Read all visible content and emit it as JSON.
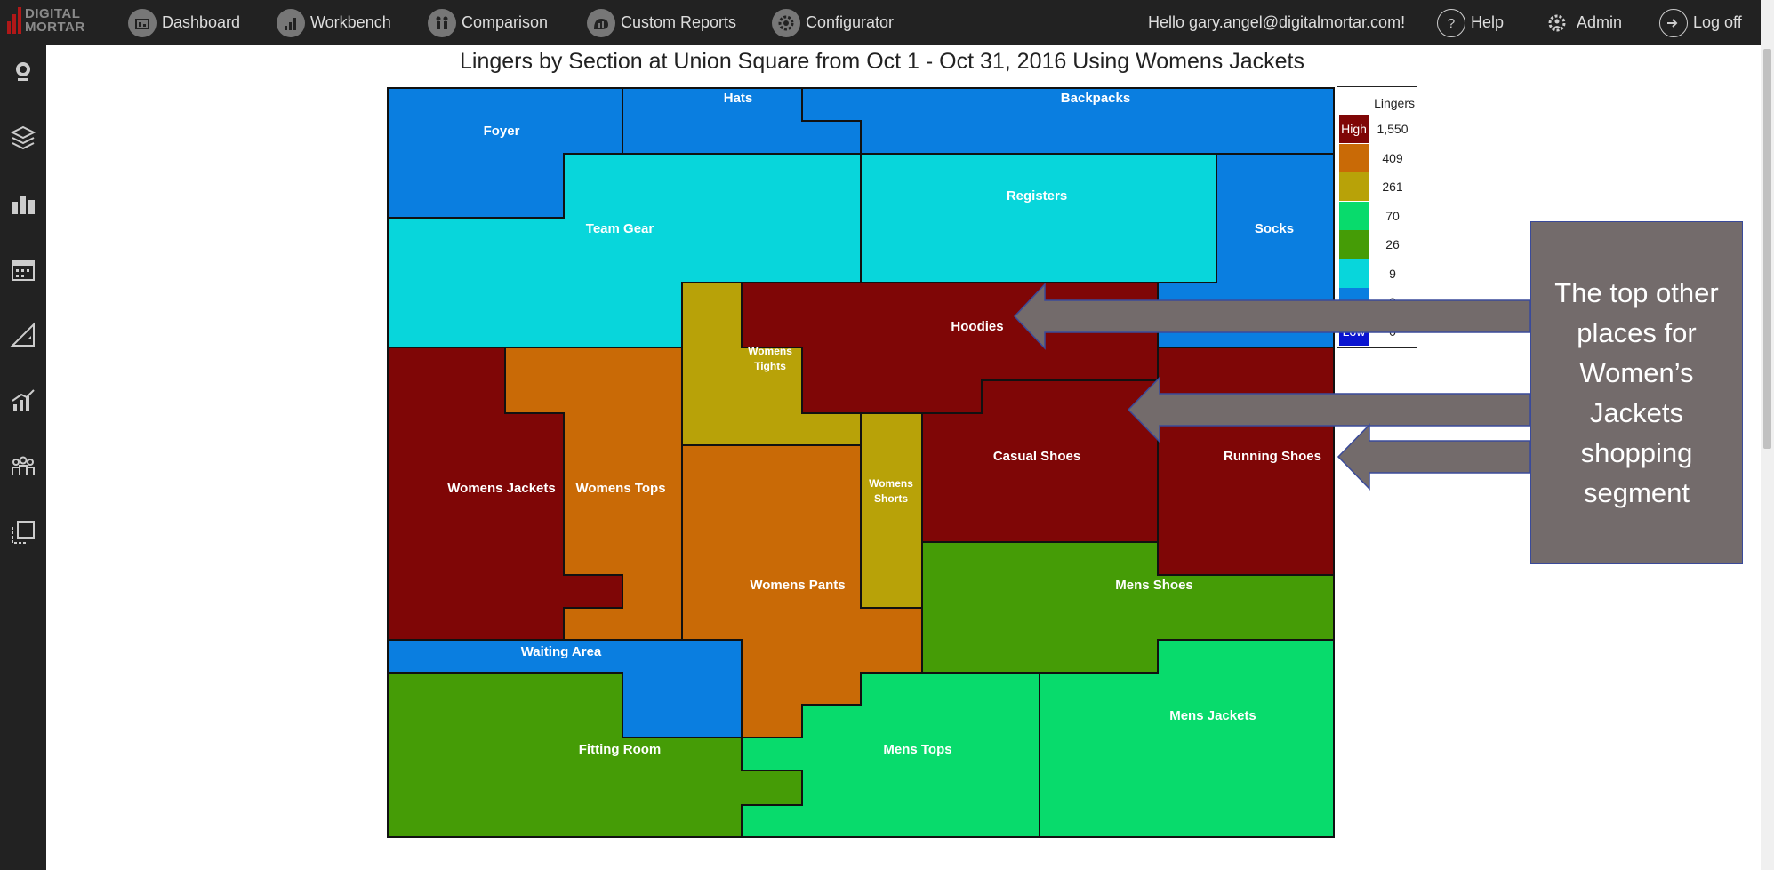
{
  "app": {
    "logo_line1": "DIGITAL",
    "logo_line2": "MORTAR",
    "greeting": "Hello gary.angel@digitalmortar.com!"
  },
  "nav": {
    "dashboard": "Dashboard",
    "workbench": "Workbench",
    "comparison": "Comparison",
    "custom_reports": "Custom Reports",
    "configurator": "Configurator",
    "help": "Help",
    "admin": "Admin",
    "logoff": "Log off"
  },
  "sidebar_icons": [
    "camera-icon",
    "layers-icon",
    "buildings-icon",
    "calendar-icon",
    "triangle-ruler-icon",
    "growth-chart-icon",
    "people-icon",
    "selection-icon"
  ],
  "chart_data": {
    "type": "heatmap",
    "title": "Lingers by Section at Union Square from Oct 1 - Oct 31, 2016 Using Womens Jackets",
    "legend": {
      "title": "Lingers",
      "high_label": "High",
      "low_label": "Low",
      "bins": [
        {
          "value": "1,550",
          "color": "#7f0606"
        },
        {
          "value": "409",
          "color": "#c96a06"
        },
        {
          "value": "261",
          "color": "#b8a208"
        },
        {
          "value": "70",
          "color": "#08db6c"
        },
        {
          "value": "26",
          "color": "#459c06"
        },
        {
          "value": "9",
          "color": "#08d6db"
        },
        {
          "value": "3",
          "color": "#0a7ee0"
        },
        {
          "value": "0",
          "color": "#0a14d0"
        }
      ]
    },
    "sections": [
      {
        "name": "Foyer",
        "level": "3"
      },
      {
        "name": "Hats",
        "level": "3"
      },
      {
        "name": "Backpacks",
        "level": "3"
      },
      {
        "name": "Socks",
        "level": "3"
      },
      {
        "name": "Team Gear",
        "level": "9"
      },
      {
        "name": "Registers",
        "level": "9"
      },
      {
        "name": "Hoodies",
        "level": "1,550"
      },
      {
        "name": "Womens Tights",
        "level": "261"
      },
      {
        "name": "Womens Jackets",
        "level": "1,550"
      },
      {
        "name": "Womens Tops",
        "level": "409"
      },
      {
        "name": "Womens Pants",
        "level": "409"
      },
      {
        "name": "Womens Shorts",
        "level": "261"
      },
      {
        "name": "Casual Shoes",
        "level": "1,550"
      },
      {
        "name": "Running Shoes",
        "level": "1,550"
      },
      {
        "name": "Mens Shoes",
        "level": "26"
      },
      {
        "name": "Waiting Area",
        "level": "3"
      },
      {
        "name": "Fitting Room",
        "level": "26"
      },
      {
        "name": "Mens Tops",
        "level": "70"
      },
      {
        "name": "Mens Jackets",
        "level": "70"
      }
    ]
  },
  "callout": {
    "text": "The top other places for Women’s Jackets shopping segment"
  }
}
